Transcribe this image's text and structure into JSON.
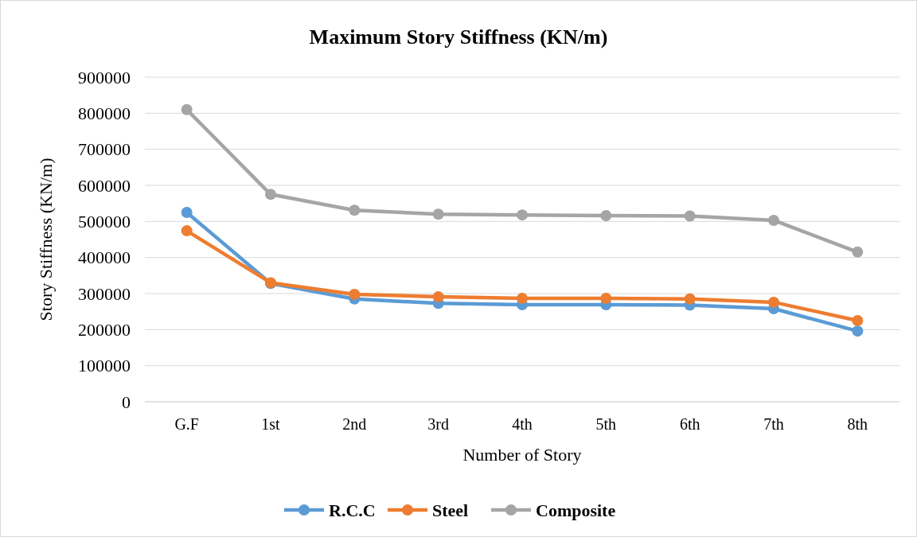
{
  "chart_data": {
    "type": "line",
    "title": "Maximum Story Stiffness (KN/m)",
    "xlabel": "Number of Story",
    "ylabel": "Story Stiffness (KN/m)",
    "categories": [
      "G.F",
      "1st",
      "2nd",
      "3rd",
      "4th",
      "5th",
      "6th",
      "7th",
      "8th"
    ],
    "series": [
      {
        "name": "R.C.C",
        "color": "#5b9bd5",
        "values": [
          525000,
          328000,
          285000,
          273000,
          269000,
          269000,
          268000,
          258000,
          196000
        ]
      },
      {
        "name": "Steel",
        "color": "#ed7d31",
        "values": [
          474000,
          330000,
          298000,
          291000,
          287000,
          287000,
          285000,
          276000,
          225000
        ]
      },
      {
        "name": "Composite",
        "color": "#a5a5a5",
        "values": [
          810000,
          575000,
          531000,
          520000,
          518000,
          516000,
          515000,
          503000,
          415000
        ]
      }
    ],
    "ylim": [
      0,
      900000
    ],
    "yticks": [
      0,
      100000,
      200000,
      300000,
      400000,
      500000,
      600000,
      700000,
      800000,
      900000
    ],
    "grid": "y",
    "legend": "bottom",
    "marker": "circle",
    "line_style": "solid"
  }
}
